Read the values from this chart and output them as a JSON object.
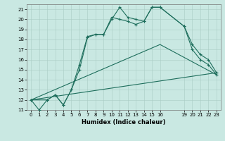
{
  "xlabel": "Humidex (Indice chaleur)",
  "xlim": [
    -0.5,
    23.5
  ],
  "ylim": [
    11,
    21.5
  ],
  "yticks": [
    11,
    12,
    13,
    14,
    15,
    16,
    17,
    18,
    19,
    20,
    21
  ],
  "xticks": [
    0,
    1,
    2,
    3,
    4,
    5,
    6,
    7,
    8,
    9,
    10,
    11,
    12,
    13,
    14,
    15,
    16,
    19,
    20,
    21,
    22,
    23
  ],
  "bg_color": "#c9e8e2",
  "line_color": "#1e6e5c",
  "grid_color": "#b0d4cc",
  "line1_x": [
    0,
    1,
    2,
    3,
    4,
    5,
    6,
    7,
    8,
    9,
    10,
    11,
    12,
    13,
    14,
    15,
    16,
    19,
    20,
    21,
    22,
    23
  ],
  "line1_y": [
    12.0,
    11.0,
    12.0,
    12.5,
    11.5,
    13.0,
    15.5,
    18.3,
    18.5,
    18.5,
    20.0,
    21.2,
    20.2,
    20.0,
    19.8,
    21.2,
    21.2,
    19.3,
    17.5,
    16.5,
    16.0,
    14.7
  ],
  "line2_x": [
    0,
    2,
    3,
    4,
    5,
    6,
    7,
    8,
    9,
    10,
    11,
    12,
    13,
    14,
    15,
    16,
    19,
    20,
    21,
    22,
    23
  ],
  "line2_y": [
    12.0,
    12.0,
    12.5,
    11.5,
    13.0,
    15.0,
    18.2,
    18.5,
    18.5,
    20.2,
    20.0,
    19.8,
    19.5,
    19.8,
    21.2,
    21.2,
    19.3,
    17.0,
    16.0,
    15.5,
    14.5
  ],
  "line3_x": [
    0,
    23
  ],
  "line3_y": [
    12.0,
    14.7
  ],
  "line4_x": [
    0,
    16,
    23
  ],
  "line4_y": [
    12.0,
    17.5,
    14.5
  ]
}
